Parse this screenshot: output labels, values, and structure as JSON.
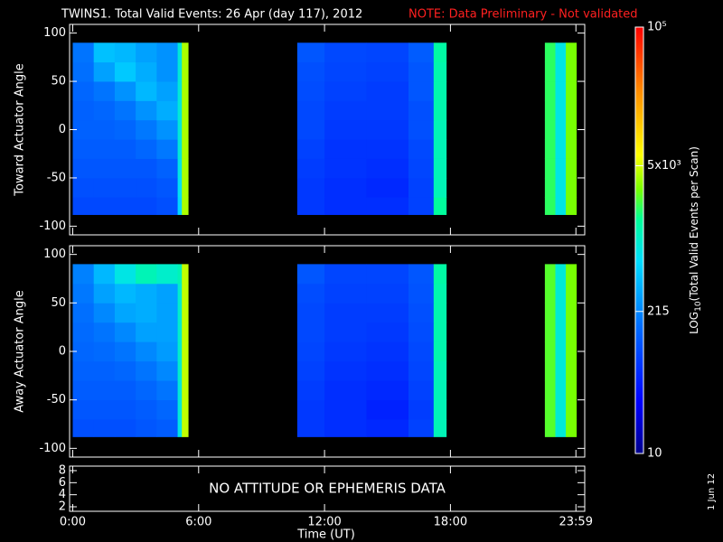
{
  "chart_data": {
    "type": "heatmap",
    "title": "TWINS1. Total Valid Events: 26 Apr (day 117), 2012",
    "note": "NOTE: Data Preliminary - Not validated",
    "date": "1 Jun 12",
    "xlabel": "Time (UT)",
    "xlim": [
      -0.15,
      24.4
    ],
    "xticks": [
      {
        "value": 0,
        "label": "0:00"
      },
      {
        "value": 6,
        "label": "6:00"
      },
      {
        "value": 12,
        "label": "12:00"
      },
      {
        "value": 18,
        "label": "18:00"
      },
      {
        "value": 23.98,
        "label": "23:59"
      }
    ],
    "x": [
      0,
      1,
      2,
      3,
      4,
      5,
      5.2,
      5.5,
      10.7,
      12,
      14,
      16,
      17.2,
      17.8,
      22.5,
      23,
      23.5,
      24
    ],
    "y": [
      -88,
      -70,
      -50,
      -30,
      -10,
      10,
      30,
      50,
      70,
      90
    ],
    "colorbar": {
      "label": [
        "LOG",
        "10",
        "(Total Valid Events per Scan)"
      ],
      "clim": [
        10,
        100000
      ],
      "log": true,
      "ticks": [
        10,
        215,
        {
          "value": 5000,
          "label": "5x10³"
        },
        {
          "value": 100000,
          "label": "10⁵"
        }
      ]
    },
    "panels": [
      {
        "ylabel": "Toward Actuator Angle",
        "ylim": [
          -109,
          109
        ],
        "yticks": [
          -100,
          -50,
          0,
          50,
          100
        ],
        "z": [
          [
            90,
            90,
            90,
            90,
            100,
            600,
            4000,
            null,
            70,
            60,
            60,
            80,
            1500,
            null,
            2000,
            800,
            3000
          ],
          [
            100,
            100,
            100,
            100,
            110,
            700,
            4000,
            null,
            70,
            60,
            55,
            80,
            1200,
            null,
            2000,
            800,
            3000
          ],
          [
            110,
            110,
            110,
            110,
            130,
            800,
            4000,
            null,
            75,
            65,
            60,
            85,
            1200,
            null,
            2000,
            800,
            3000
          ],
          [
            120,
            120,
            120,
            140,
            180,
            900,
            4000,
            null,
            80,
            65,
            65,
            90,
            1200,
            null,
            2000,
            800,
            3000
          ],
          [
            130,
            130,
            140,
            180,
            250,
            900,
            4000,
            null,
            90,
            70,
            70,
            100,
            1200,
            null,
            2000,
            800,
            3000
          ],
          [
            130,
            140,
            170,
            250,
            350,
            900,
            4000,
            null,
            90,
            75,
            75,
            100,
            1300,
            null,
            2000,
            800,
            3000
          ],
          [
            140,
            170,
            250,
            400,
            300,
            900,
            4000,
            null,
            95,
            80,
            75,
            110,
            1300,
            null,
            2000,
            800,
            3000
          ],
          [
            160,
            300,
            500,
            350,
            250,
            900,
            4000,
            null,
            100,
            85,
            80,
            110,
            1300,
            null,
            2000,
            800,
            3000
          ],
          [
            170,
            450,
            400,
            300,
            250,
            900,
            4000,
            null,
            110,
            90,
            85,
            120,
            1400,
            null,
            2000,
            800,
            3000
          ]
        ]
      },
      {
        "ylabel": "Away Actuator Angle",
        "ylim": [
          -109,
          109
        ],
        "yticks": [
          -100,
          -50,
          0,
          50,
          100
        ],
        "z": [
          [
            100,
            100,
            100,
            110,
            120,
            800,
            4500,
            null,
            70,
            60,
            55,
            80,
            1200,
            null,
            2500,
            900,
            3000
          ],
          [
            110,
            110,
            110,
            120,
            140,
            900,
            4500,
            null,
            70,
            60,
            50,
            75,
            1200,
            null,
            2500,
            900,
            3000
          ],
          [
            120,
            120,
            120,
            140,
            170,
            900,
            4500,
            null,
            75,
            60,
            55,
            80,
            1200,
            null,
            2500,
            900,
            3000
          ],
          [
            130,
            130,
            140,
            170,
            220,
            1000,
            4500,
            null,
            80,
            65,
            60,
            85,
            1200,
            null,
            2500,
            900,
            3000
          ],
          [
            140,
            150,
            170,
            220,
            280,
            1000,
            4500,
            null,
            85,
            70,
            65,
            90,
            1300,
            null,
            2500,
            900,
            3000
          ],
          [
            150,
            170,
            220,
            300,
            300,
            1000,
            4500,
            null,
            90,
            75,
            70,
            95,
            1300,
            null,
            2500,
            900,
            3000
          ],
          [
            160,
            220,
            320,
            350,
            300,
            1000,
            4500,
            null,
            90,
            75,
            75,
            100,
            1300,
            null,
            2500,
            900,
            3000
          ],
          [
            180,
            300,
            400,
            350,
            300,
            1000,
            4500,
            null,
            95,
            80,
            80,
            105,
            1300,
            null,
            2500,
            900,
            3000
          ],
          [
            200,
            400,
            800,
            1200,
            1000,
            1200,
            4500,
            null,
            110,
            85,
            85,
            110,
            1400,
            null,
            2500,
            900,
            3000
          ]
        ]
      },
      {
        "ylim": [
          1.25,
          8.75
        ],
        "yticks": [
          2,
          4,
          6,
          8
        ],
        "message": "NO ATTITUDE OR EPHEMERIS DATA"
      }
    ]
  }
}
